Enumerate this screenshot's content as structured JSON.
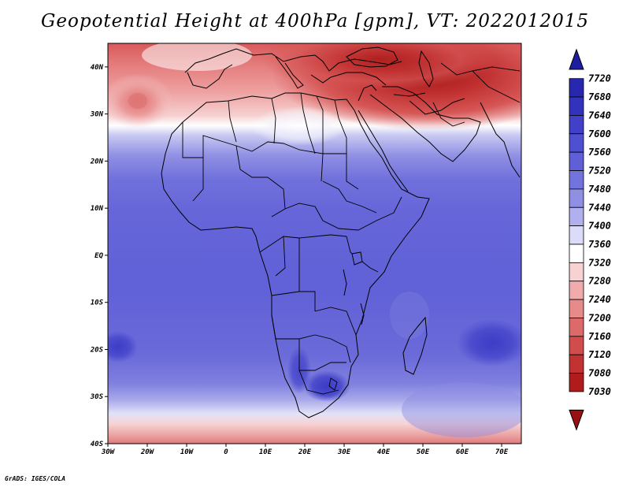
{
  "title": "Geopotential Height at 400hPa [gpm], VT: 2022012015",
  "credit": "GrADS: IGES/COLA",
  "map": {
    "lat_labels": [
      "40N",
      "30N",
      "20N",
      "10N",
      "EQ",
      "10S",
      "20S",
      "30S",
      "40S"
    ],
    "lon_labels": [
      "30W",
      "20W",
      "10W",
      "0",
      "10E",
      "20E",
      "30E",
      "40E",
      "50E",
      "60E",
      "70E"
    ],
    "lat_range": [
      -40,
      45
    ],
    "lon_range": [
      -30,
      75
    ]
  },
  "colorbar": {
    "labels": [
      "7720",
      "7680",
      "7640",
      "7600",
      "7560",
      "7520",
      "7480",
      "7440",
      "7400",
      "7360",
      "7320",
      "7280",
      "7240",
      "7200",
      "7160",
      "7120",
      "7080",
      "7030"
    ],
    "colors": [
      "#1e1ea0",
      "#2727b0",
      "#3232bd",
      "#4040c8",
      "#4f4fd2",
      "#5f5fd8",
      "#7373dd",
      "#8f8fe4",
      "#b0b0ee",
      "#dcdcf8",
      "#ffffff",
      "#f8d2d2",
      "#f0acac",
      "#e68a8a",
      "#dc6a6a",
      "#d24c4c",
      "#c33232",
      "#b01c1c",
      "#9a1010"
    ]
  },
  "chart_data": {
    "type": "heatmap",
    "title": "Geopotential Height at 400hPa [gpm], VT: 2022012015",
    "variable": "Geopotential Height at 400hPa",
    "units": "gpm",
    "valid_time": "2022012015",
    "lon_range": [
      -30,
      75
    ],
    "lat_range": [
      -40,
      45
    ],
    "levels": [
      7030,
      7080,
      7120,
      7160,
      7200,
      7240,
      7280,
      7320,
      7360,
      7400,
      7440,
      7480,
      7520,
      7560,
      7600,
      7640,
      7680,
      7720
    ]
  }
}
